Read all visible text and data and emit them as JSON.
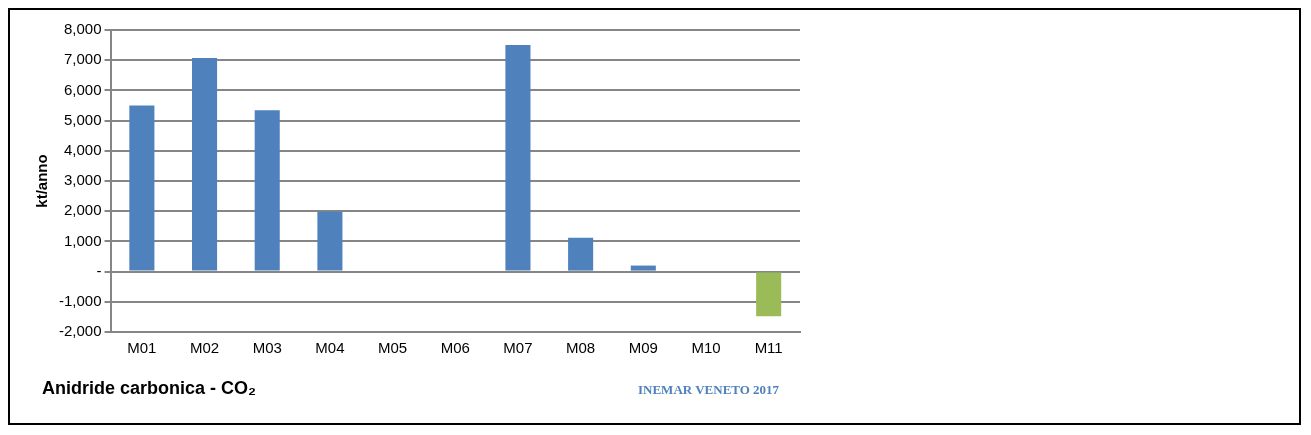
{
  "chart_data": {
    "type": "bar",
    "title": "Anidride carbonica - CO₂",
    "ylabel": "kt/anno",
    "categories": [
      "M01",
      "M02",
      "M03",
      "M04",
      "M05",
      "M06",
      "M07",
      "M08",
      "M09",
      "M10",
      "M11"
    ],
    "values": [
      5500,
      7070,
      5340,
      1980,
      0,
      0,
      7500,
      1120,
      200,
      0,
      -1480
    ],
    "colors": [
      "#4f81bd",
      "#4f81bd",
      "#4f81bd",
      "#4f81bd",
      "#4f81bd",
      "#4f81bd",
      "#4f81bd",
      "#4f81bd",
      "#4f81bd",
      "#4f81bd",
      "#9bbb59"
    ],
    "ylim": [
      -2000,
      8000
    ],
    "yticks": [
      {
        "value": -2000,
        "label": "-2,000"
      },
      {
        "value": -1000,
        "label": "-1,000"
      },
      {
        "value": 0,
        "label": "-"
      },
      {
        "value": 1000,
        "label": "1,000"
      },
      {
        "value": 2000,
        "label": "2,000"
      },
      {
        "value": 3000,
        "label": "3,000"
      },
      {
        "value": 4000,
        "label": "4,000"
      },
      {
        "value": 5000,
        "label": "5,000"
      },
      {
        "value": 6000,
        "label": "6,000"
      },
      {
        "value": 7000,
        "label": "7,000"
      },
      {
        "value": 8000,
        "label": "8,000"
      }
    ],
    "grid": "y",
    "legend": false,
    "annotations": [
      "INEMAR VENETO 2017"
    ]
  }
}
